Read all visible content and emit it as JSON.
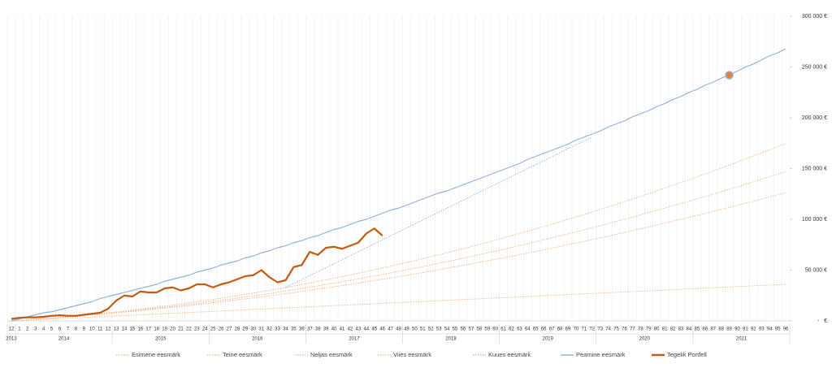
{
  "chart_data": {
    "type": "line",
    "categories": [
      "12",
      "1",
      "2",
      "3",
      "4",
      "5",
      "6",
      "7",
      "8",
      "9",
      "10",
      "11",
      "12",
      "13",
      "14",
      "15",
      "16",
      "17",
      "18",
      "19",
      "20",
      "21",
      "22",
      "23",
      "24",
      "25",
      "26",
      "27",
      "28",
      "29",
      "30",
      "31",
      "32",
      "33",
      "34",
      "35",
      "36",
      "37",
      "38",
      "39",
      "40",
      "41",
      "42",
      "43",
      "44",
      "45",
      "46",
      "47",
      "48",
      "49",
      "50",
      "51",
      "52",
      "53",
      "54",
      "55",
      "56",
      "57",
      "58",
      "59",
      "60",
      "61",
      "62",
      "63",
      "64",
      "65",
      "66",
      "67",
      "68",
      "69",
      "70",
      "71",
      "72",
      "73",
      "74",
      "75",
      "76",
      "77",
      "78",
      "79",
      "80",
      "81",
      "82",
      "83",
      "84",
      "85",
      "86",
      "87",
      "88",
      "89",
      "90",
      "91",
      "92",
      "93",
      "94",
      "95",
      "96"
    ],
    "years": [
      {
        "label": "2013",
        "months": 1
      },
      {
        "label": "2014",
        "months": 12
      },
      {
        "label": "2015",
        "months": 12
      },
      {
        "label": "2016",
        "months": 12
      },
      {
        "label": "2017",
        "months": 12
      },
      {
        "label": "2018",
        "months": 12
      },
      {
        "label": "2019",
        "months": 12
      },
      {
        "label": "2020",
        "months": 12
      },
      {
        "label": "2021",
        "months": 12
      }
    ],
    "ylim": [
      0,
      300000
    ],
    "yticks": [
      {
        "value": 0,
        "label": "-   €"
      },
      {
        "value": 50000,
        "label": "50 000 €"
      },
      {
        "value": 100000,
        "label": "100 000 €"
      },
      {
        "value": 150000,
        "label": "150 000 €"
      },
      {
        "value": 200000,
        "label": "200 000 €"
      },
      {
        "value": 250000,
        "label": "250 000 €"
      },
      {
        "value": 300000,
        "label": "300 000 €"
      }
    ],
    "grid": true,
    "marker_category": "89",
    "series": [
      {
        "name": "Esimene eesmärk",
        "color": "#f4b183",
        "style": "dotted",
        "values": [
          0,
          375,
          750,
          1125,
          1500,
          1875,
          2250,
          2625,
          3000,
          3375,
          3750,
          4125,
          4500,
          4875,
          5250,
          5625,
          6000,
          6375,
          6750,
          7125,
          7500,
          7875,
          8250,
          8625,
          9000,
          9375,
          9750,
          10125,
          10500,
          10875,
          11250,
          11625,
          12000,
          12375,
          12750,
          13125,
          13500,
          13875,
          14250,
          14625,
          15000,
          15375,
          15750,
          16125,
          16500,
          16875,
          17250,
          17625,
          18000,
          18375,
          18750,
          19125,
          19500,
          19875,
          20250,
          20625,
          21000,
          21375,
          21750,
          22125,
          22500,
          22875,
          23250,
          23625,
          24000,
          24375,
          24750,
          25125,
          25500,
          25875,
          26250,
          26625,
          27000,
          27375,
          27750,
          28125,
          28500,
          28875,
          29250,
          29625,
          30000,
          30375,
          30750,
          31125,
          31500,
          31875,
          32250,
          32625,
          33000,
          33375,
          33750,
          34125,
          34500,
          34875,
          35250,
          35625,
          36000
        ]
      },
      {
        "name": "Teine eesmärk",
        "color": "#f4b183",
        "style": "dotted",
        "values": [
          0,
          500,
          1000,
          1600,
          2100,
          2700,
          3300,
          3900,
          4500,
          5200,
          5900,
          6500,
          7200,
          7900,
          8700,
          9400,
          10200,
          11000,
          11800,
          12600,
          13400,
          14200,
          15100,
          16000,
          16900,
          17800,
          18700,
          19700,
          20700,
          21600,
          22700,
          23700,
          24700,
          25800,
          26800,
          27900,
          29000,
          30100,
          31300,
          32400,
          33600,
          34800,
          36000,
          37200,
          38500,
          39700,
          41000,
          42300,
          43600,
          44900,
          46300,
          47600,
          49000,
          50400,
          51800,
          53200,
          54700,
          56100,
          57600,
          59100,
          60600,
          62100,
          63700,
          65200,
          66800,
          68400,
          70000,
          71700,
          73300,
          75000,
          76700,
          78300,
          80100,
          81800,
          83500,
          85300,
          87100,
          88900,
          90700,
          92500,
          94400,
          96300,
          98200,
          100100,
          102000,
          103900,
          105900,
          107800,
          109800,
          111800,
          113900,
          115900,
          117900,
          120000,
          122100,
          124200,
          126300
        ]
      },
      {
        "name": "Neljas eesmärk",
        "color": "#f4b183",
        "style": "dotted",
        "values": [
          0,
          500,
          1000,
          1600,
          2200,
          2800,
          3400,
          4000,
          4700,
          5400,
          6100,
          6800,
          7500,
          8300,
          9100,
          9900,
          10800,
          11600,
          12500,
          13400,
          14300,
          15200,
          16200,
          17200,
          18200,
          19200,
          20300,
          21300,
          22400,
          23500,
          24700,
          25800,
          27000,
          28200,
          29400,
          30700,
          31900,
          33200,
          34500,
          35900,
          37200,
          38600,
          40000,
          41400,
          42800,
          44300,
          45700,
          47200,
          48800,
          50300,
          51900,
          53500,
          55100,
          56700,
          58300,
          60000,
          61700,
          63400,
          65200,
          66900,
          68700,
          70500,
          72300,
          74200,
          76000,
          77900,
          79800,
          81800,
          83700,
          85700,
          87700,
          89700,
          91700,
          93800,
          95900,
          98000,
          100100,
          102200,
          104400,
          106600,
          108800,
          111000,
          113300,
          115600,
          117900,
          120200,
          122500,
          124900,
          127200,
          129700,
          132100,
          134500,
          137000,
          139500,
          142000,
          144500,
          147100
        ]
      },
      {
        "name": "Viies eesmärk",
        "color": "#f4b183",
        "style": "dotted",
        "values": [
          0,
          500,
          1100,
          1600,
          2200,
          2800,
          3500,
          4200,
          4900,
          5600,
          6400,
          7200,
          8000,
          8800,
          9700,
          10600,
          11500,
          12500,
          13500,
          14500,
          15500,
          16600,
          17700,
          18800,
          19900,
          21100,
          22300,
          23500,
          24800,
          26100,
          27400,
          28700,
          30100,
          31500,
          32900,
          34300,
          35800,
          37300,
          38900,
          40400,
          42000,
          43600,
          45300,
          46900,
          48600,
          50300,
          52100,
          53900,
          55700,
          57500,
          59400,
          61300,
          63200,
          65100,
          67100,
          69100,
          71100,
          73200,
          75300,
          77400,
          79500,
          81700,
          83900,
          86100,
          88300,
          90600,
          92900,
          95200,
          97600,
          100000,
          102400,
          104800,
          107300,
          109800,
          112300,
          114800,
          117400,
          120000,
          122700,
          125300,
          128000,
          130700,
          133500,
          136200,
          139000,
          141800,
          144700,
          147600,
          150500,
          153400,
          156400,
          159400,
          162400,
          165400,
          168500,
          171600,
          174700
        ]
      },
      {
        "name": "Kuues eesmärk",
        "color": "#8fb4de",
        "style": "dotted",
        "values": [
          null,
          null,
          null,
          null,
          null,
          null,
          null,
          null,
          null,
          null,
          null,
          null,
          null,
          null,
          null,
          null,
          null,
          null,
          null,
          null,
          null,
          null,
          null,
          null,
          null,
          null,
          null,
          null,
          null,
          null,
          null,
          null,
          null,
          null,
          33000,
          36900,
          40800,
          44700,
          48600,
          52500,
          56400,
          60300,
          64200,
          68100,
          72000,
          75900,
          79800,
          83700,
          87600,
          91500,
          95400,
          99300,
          103200,
          107100,
          111000,
          114900,
          118800,
          122700,
          126600,
          130500,
          134400,
          138300,
          142200,
          146100,
          150000,
          153900,
          157800,
          161700,
          165600,
          169500,
          173400,
          177300,
          181200,
          null,
          null,
          null,
          null,
          null,
          null,
          null,
          null,
          null,
          null,
          null,
          null,
          null,
          null,
          null,
          null,
          null,
          null,
          null,
          null,
          null,
          null,
          null,
          null
        ]
      },
      {
        "name": "Peamine eesmärk",
        "color": "#8fb4de",
        "style": "solid",
        "values": [
          0,
          2000,
          4000,
          6000,
          8000,
          9000,
          11000,
          13000,
          15000,
          17000,
          19000,
          22000,
          24000,
          26000,
          28000,
          30000,
          32000,
          34000,
          36000,
          39000,
          41000,
          43000,
          45000,
          48000,
          50000,
          52000,
          55000,
          57000,
          59000,
          62000,
          64000,
          67000,
          69000,
          72000,
          74000,
          77000,
          79000,
          82000,
          84000,
          87000,
          90000,
          92000,
          95000,
          98000,
          100000,
          103000,
          106000,
          109000,
          111000,
          114000,
          117000,
          120000,
          123000,
          126000,
          128000,
          131000,
          134000,
          137000,
          140000,
          143000,
          146000,
          149000,
          152000,
          155000,
          159000,
          162000,
          165000,
          168000,
          171000,
          174000,
          178000,
          181000,
          184000,
          187000,
          191000,
          194000,
          197000,
          201000,
          204000,
          207000,
          211000,
          214000,
          218000,
          221000,
          225000,
          228000,
          232000,
          235000,
          239000,
          242000,
          246000,
          250000,
          253000,
          257000,
          261000,
          264000,
          268000
        ]
      },
      {
        "name": "Tegelik Portfell",
        "color": "#c55a11",
        "style": "thick",
        "values": [
          2000,
          3000,
          3500,
          3500,
          4000,
          5000,
          5500,
          5000,
          5000,
          6000,
          7000,
          8000,
          12000,
          20000,
          25000,
          24000,
          29000,
          28000,
          28000,
          32000,
          33000,
          30000,
          32000,
          36000,
          36000,
          33000,
          36000,
          38000,
          41000,
          44000,
          45000,
          50000,
          43000,
          38000,
          40000,
          53000,
          55000,
          68000,
          65000,
          72000,
          73000,
          71000,
          74000,
          77000,
          86000,
          91000,
          84000,
          null,
          null,
          null,
          null,
          null,
          null,
          null,
          null,
          null,
          null,
          null,
          null,
          null,
          null,
          null,
          null,
          null,
          null,
          null,
          null,
          null,
          null,
          null,
          null,
          null,
          null,
          null,
          null,
          null,
          null,
          null,
          null,
          null,
          null,
          null,
          null,
          null,
          null,
          null,
          null,
          null,
          null,
          null,
          null,
          null,
          null,
          null,
          null,
          null,
          null
        ]
      }
    ]
  }
}
